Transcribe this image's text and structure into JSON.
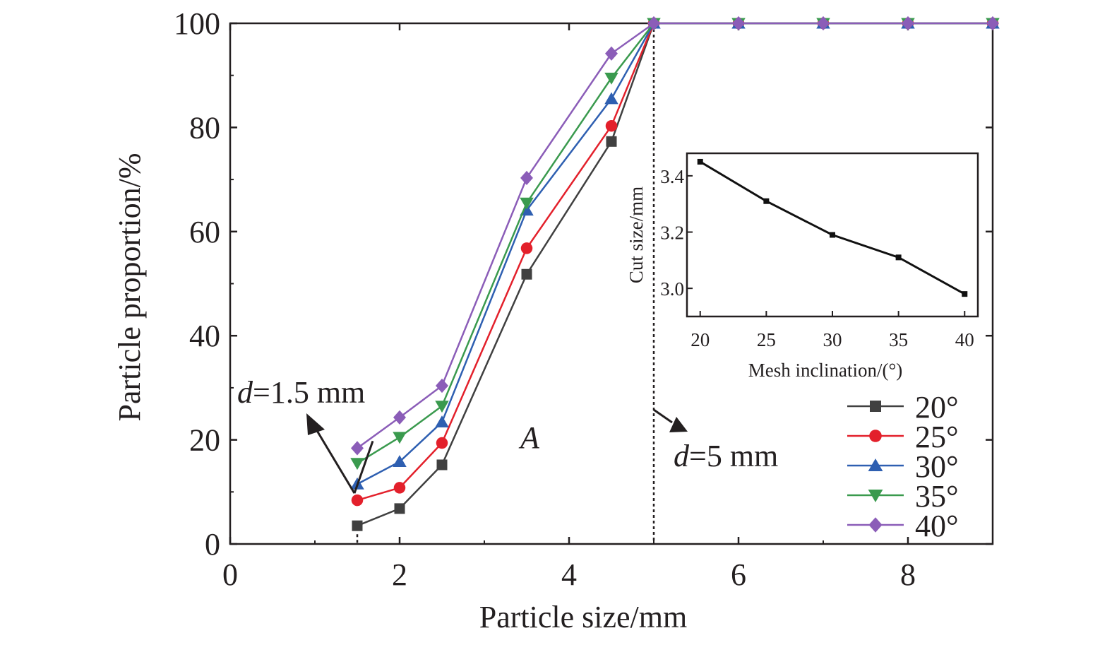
{
  "chart_data": [
    {
      "type": "line",
      "title": "",
      "xlabel": "Particle size/mm",
      "ylabel": "Particle proportion/%",
      "xlim": [
        0,
        9
      ],
      "ylim": [
        0,
        100
      ],
      "xticks": [
        "0",
        "2",
        "4",
        "6",
        "8"
      ],
      "yticks": [
        "0",
        "20",
        "40",
        "60",
        "80",
        "100"
      ],
      "x": [
        1.5,
        2,
        2.5,
        3.5,
        4.5,
        5,
        6,
        7,
        8,
        9
      ],
      "series": [
        {
          "name": "20°",
          "color": "#404040",
          "marker": "square",
          "values": [
            3.5,
            6.8,
            15.2,
            51.8,
            77.3,
            100,
            100,
            100,
            100,
            100
          ]
        },
        {
          "name": "25°",
          "color": "#e3202b",
          "marker": "circle",
          "values": [
            8.4,
            10.8,
            19.4,
            56.8,
            80.3,
            100,
            100,
            100,
            100,
            100
          ]
        },
        {
          "name": "30°",
          "color": "#2e5fb1",
          "marker": "triangle-up",
          "values": [
            11.5,
            15.8,
            23.4,
            64.1,
            85.5,
            100,
            100,
            100,
            100,
            100
          ]
        },
        {
          "name": "35°",
          "color": "#3a9a4e",
          "marker": "triangle-down",
          "values": [
            15.5,
            20.5,
            26.5,
            65.5,
            89.5,
            100,
            100,
            100,
            100,
            100
          ]
        },
        {
          "name": "40°",
          "color": "#8b5db8",
          "marker": "diamond",
          "values": [
            18.4,
            24.3,
            30.4,
            70.3,
            94.2,
            100,
            100,
            100,
            100,
            100
          ]
        }
      ],
      "legend_position": "bottom-right",
      "grid": false,
      "annotations": [
        {
          "italic": "d",
          "text": "=1.5 mm",
          "x": 1.5
        },
        {
          "italic": "d",
          "text": "=5 mm",
          "x": 5
        },
        {
          "italic": "A",
          "text": ""
        }
      ]
    },
    {
      "type": "line",
      "title": "",
      "xlabel": "Mesh inclination/(°)",
      "ylabel": "Cut size/mm",
      "xlim": [
        19,
        41
      ],
      "ylim": [
        2.9,
        3.48
      ],
      "xticks": [
        "20",
        "25",
        "30",
        "35",
        "40"
      ],
      "yticks": [
        "3.0",
        "3.2",
        "3.4"
      ],
      "x": [
        20,
        25,
        30,
        35,
        40
      ],
      "series": [
        {
          "color": "#111111",
          "marker": "square",
          "values": [
            3.45,
            3.31,
            3.19,
            3.11,
            2.98
          ]
        }
      ],
      "grid": false
    }
  ]
}
